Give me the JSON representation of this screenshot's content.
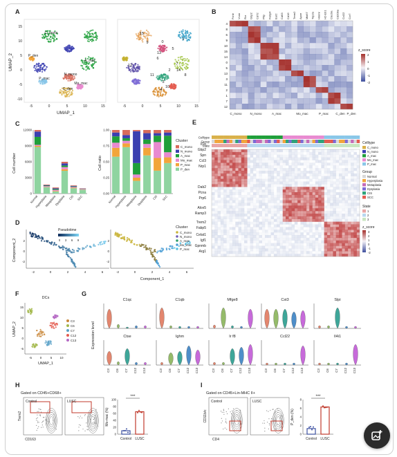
{
  "panels": {
    "A": {
      "label": "A",
      "xlabel": "UMAP_1",
      "ylabel": "UMAP_2",
      "ticks_x": [
        "-5",
        "0",
        "5",
        "10",
        "15"
      ],
      "ticks_y": [
        "-10",
        "-5",
        "0",
        "5",
        "10",
        "15"
      ],
      "left_labels": [
        "C_mono",
        "N_mono",
        "A_mac",
        "Mo_mac",
        "P_den",
        "P_mac",
        "C_den"
      ],
      "right_labels": [
        "0",
        "1",
        "2",
        "3",
        "4",
        "5",
        "6",
        "7",
        "8",
        "9",
        "10",
        "11",
        "12",
        "13",
        "14",
        "15"
      ]
    },
    "B": {
      "label": "B",
      "genes": [
        "Fcnb",
        "Vcan",
        "Rcr",
        "Gbp2",
        "Cd72",
        "Pltp",
        "Fabp4",
        "Ear2",
        "Cd63",
        "Cd16",
        "Trem2",
        "Apoe",
        "Mki67",
        "Top2a",
        "Hmmr",
        "H2-Eb1",
        "Clec9a",
        "Cd209a",
        "Ccl22",
        "Ccr7"
      ],
      "rows": [
        "4",
        "8",
        "6",
        "9",
        "10",
        "15",
        "14",
        "0",
        "5",
        "13",
        "3",
        "11",
        "2",
        "1",
        "7",
        "12"
      ],
      "cols": [
        "C_mono",
        "N_mono",
        "A_mac",
        "Mo_mac",
        "P_mac",
        "C_den",
        "P_den"
      ],
      "legend_title": "z_score",
      "legend_ticks": [
        "2",
        "1",
        "0",
        "-1",
        "-2"
      ]
    },
    "C": {
      "label": "C",
      "left_ylabel": "Cell number",
      "right_ylabel": "Cell ratio",
      "left_yticks": [
        "0",
        "3000",
        "6000",
        "9000",
        "12000"
      ],
      "right_yticks": [
        "0.00",
        "0.25",
        "0.50",
        "0.75",
        "1.00"
      ],
      "legend_title": "Cluster"
    },
    "D": {
      "label": "D",
      "pseudo_title": "Pseudotime",
      "pseudo_ticks": [
        "0",
        "3",
        "6",
        "9"
      ],
      "xlabel": "Component_1",
      "ylabel": "Component_2",
      "xticks": [
        "-2",
        "0",
        "2",
        "4",
        "6"
      ],
      "yticks": [
        "-2",
        "0",
        "2"
      ],
      "legend_title": "Cluster",
      "legend": [
        "C_mono",
        "N_mono",
        "A_mac",
        "Mo_mac",
        "P_mac"
      ]
    },
    "E": {
      "label": "E",
      "bars": [
        "Celltype",
        "Group",
        "State"
      ],
      "genes": [
        "Il1b",
        "Gbp2",
        "Spn",
        "Ccl3",
        "Nrp1",
        "Dab2",
        "Pcna",
        "Prp6",
        "Alox5",
        "Ramp3",
        "Trem2",
        "Fabp5",
        "Celat1",
        "Igf1",
        "Gpnmb",
        "Arg1"
      ],
      "celltype_title": "Celltype",
      "celltypes": [
        "C_mono",
        "N_mono",
        "A_mac",
        "Mo_mac",
        "P_mac"
      ],
      "group_title": "Group",
      "groups": [
        "Normal",
        "Hyperplasia",
        "Metaplasia",
        "Dysplasia",
        "CIS",
        "SCC"
      ],
      "state_title": "State",
      "states": [
        "1",
        "2",
        "3"
      ],
      "zscore_title": "z_score",
      "zscore_ticks": [
        "3",
        "2",
        "1",
        "0",
        "-1",
        "-2"
      ]
    },
    "F": {
      "label": "F",
      "title": "DCs",
      "xlabel": "UMAP_1",
      "ylabel": "UMAP_2",
      "xticks": [
        "-5",
        "0",
        "5",
        "10"
      ],
      "yticks": [
        "-5",
        "0",
        "5",
        "10",
        "15"
      ],
      "legend": [
        "C3",
        "C6",
        "C7",
        "C12",
        "C13"
      ]
    },
    "G": {
      "label": "G",
      "ylabel": "Expression level",
      "genes_top": [
        "C1qc",
        "C1qb",
        "Mfge8",
        "Cst3",
        "Slpi"
      ],
      "genes_bottom": [
        "Ctse",
        "Ighm",
        "Ir f8",
        "Ccl22",
        "Il4i1"
      ],
      "categories": [
        "C3",
        "C6",
        "C7",
        "C12",
        "C13"
      ]
    },
    "H": {
      "label": "H",
      "gate": "Gated on CD45+CD68+",
      "p1": "Control",
      "p2": "LUSC",
      "xaxis": "CD163",
      "yaxis": "Trem2",
      "bar_ylabel": "Mo-mac (%)",
      "bar_yticks": [
        "0",
        "20",
        "40",
        "60",
        "80",
        "100"
      ],
      "sig": "***"
    },
    "I": {
      "label": "I",
      "gate": "Gated on CD45+Lin-MHC II+",
      "p1": "Control",
      "p2": "LUSC",
      "xaxis": "CD4",
      "yaxis": "CD11b/c",
      "bar_ylabel": "P_den (%)",
      "bar_yticks": [
        "0",
        "2",
        "4",
        "6",
        "8"
      ],
      "sig": "***"
    }
  },
  "colors": {
    "C_mono": "#d86b5b",
    "N_mono": "#3b3fb0",
    "A_mac": "#1f9f3a",
    "Mo_mac": "#e88ad0",
    "P_den": "#f2a53b",
    "P_mac": "#89c7e8",
    "C_den": "#d9b14a",
    "heat_high": "#a4302c",
    "heat_low": "#3e4f9e",
    "heat_mid": "#f4f1f5"
  },
  "chart_data": [
    {
      "panel": "C-left",
      "type": "bar",
      "stacked": true,
      "categories": [
        "Normal",
        "Hyperplasia",
        "Metaplasia",
        "Dysplasia",
        "CIS",
        "SCC"
      ],
      "ylabel": "Cell number",
      "ylim": [
        0,
        12000
      ],
      "series": [
        {
          "name": "C_mono",
          "values": [
            300,
            100,
            150,
            300,
            100,
            50
          ]
        },
        {
          "name": "N_mono",
          "values": [
            1000,
            100,
            150,
            400,
            100,
            50
          ]
        },
        {
          "name": "A_mac",
          "values": [
            1500,
            100,
            150,
            300,
            100,
            50
          ]
        },
        {
          "name": "Mo_mac",
          "values": [
            200,
            150,
            200,
            400,
            150,
            100
          ]
        },
        {
          "name": "P_mac",
          "values": [
            200,
            50,
            100,
            300,
            100,
            50
          ]
        },
        {
          "name": "P_den",
          "values": [
            8800,
            1200,
            400,
            4300,
            1000,
            700
          ]
        }
      ]
    },
    {
      "panel": "C-right",
      "type": "bar",
      "stacked": true,
      "categories": [
        "Normal",
        "Hyperplasia",
        "Metaplasia",
        "Dysplasia",
        "CIS",
        "SCC"
      ],
      "ylabel": "Cell ratio",
      "ylim": [
        0,
        1
      ],
      "series": [
        {
          "name": "C_mono",
          "values": [
            0.04,
            0.08,
            0.02,
            0.05,
            0.05,
            0.04
          ]
        },
        {
          "name": "N_mono",
          "values": [
            0.06,
            0.05,
            0.5,
            0.1,
            0.04,
            0.05
          ]
        },
        {
          "name": "A_mac",
          "values": [
            0.1,
            0.04,
            0.18,
            0.07,
            0.1,
            0.26
          ]
        },
        {
          "name": "Mo_mac",
          "values": [
            0.08,
            0.04,
            0.05,
            0.06,
            0.25,
            0.08
          ]
        },
        {
          "name": "P_mac",
          "values": [
            0.14,
            0.06,
            0.05,
            0.12,
            0.2,
            0.09
          ]
        },
        {
          "name": "P_den",
          "values": [
            0.58,
            0.73,
            0.2,
            0.6,
            0.36,
            0.48
          ]
        }
      ]
    },
    {
      "panel": "H",
      "type": "bar",
      "categories": [
        "Control",
        "LUSC"
      ],
      "values": [
        10,
        65
      ],
      "ylim": [
        0,
        100
      ],
      "ylabel": "Mo-mac (%)"
    },
    {
      "panel": "I",
      "type": "bar",
      "categories": [
        "Control",
        "LUSC"
      ],
      "values": [
        1.3,
        6.3
      ],
      "ylim": [
        0,
        8
      ],
      "ylabel": "P_den (%)"
    }
  ]
}
